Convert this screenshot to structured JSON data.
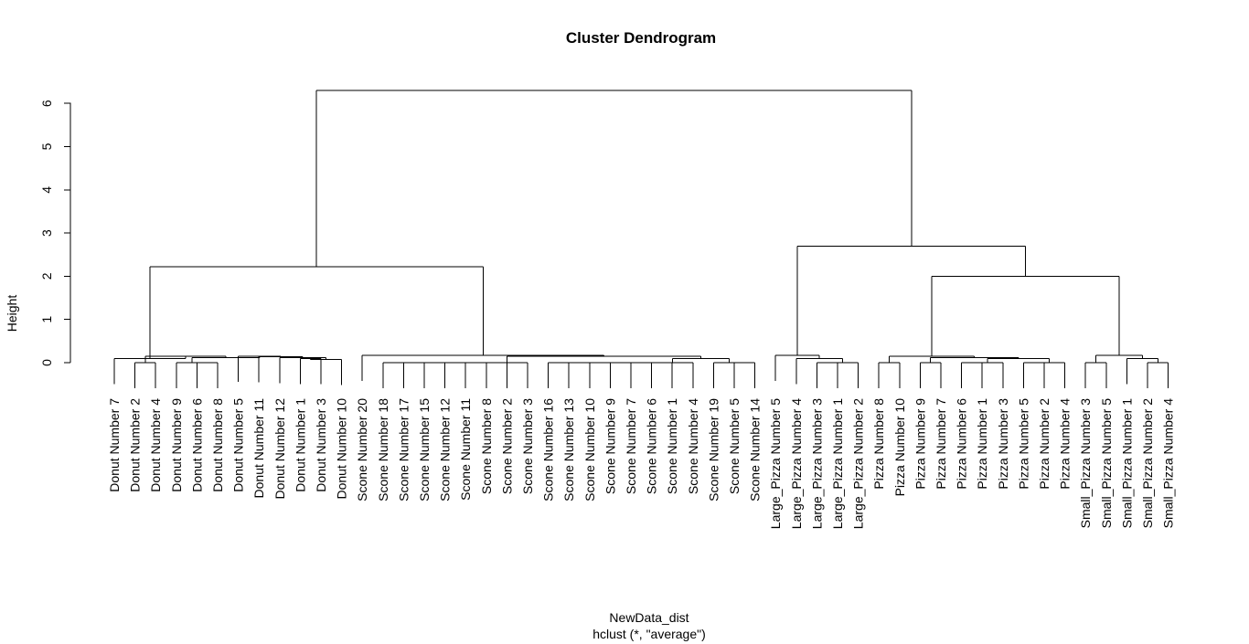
{
  "chart_data": {
    "type": "dendrogram",
    "title": "Cluster Dendrogram",
    "ylabel": "Height",
    "xlabel": "NewData_dist",
    "sublabel": "hclust (*, \"average\")",
    "ylim": [
      0,
      6.3
    ],
    "yticks": [
      0,
      1,
      2,
      3,
      4,
      5,
      6
    ],
    "labels": [
      "Donut Number 7",
      "Donut Number 2",
      "Donut Number 4",
      "Donut Number 9",
      "Donut Number 6",
      "Donut Number 8",
      "Donut Number 5",
      "Donut Number 11",
      "Donut Number 12",
      "Donut Number 1",
      "Donut Number 3",
      "Donut Number 10",
      "Scone Number 20",
      "Scone Number 18",
      "Scone Number 17",
      "Scone Number 15",
      "Scone Number 12",
      "Scone Number 11",
      "Scone Number 8",
      "Scone Number 2",
      "Scone Number 3",
      "Scone Number 16",
      "Scone Number 13",
      "Scone Number 10",
      "Scone Number 9",
      "Scone Number 7",
      "Scone Number 6",
      "Scone Number 1",
      "Scone Number 4",
      "Scone Number 19",
      "Scone Number 5",
      "Scone Number 14",
      "Large_Pizza Number 5",
      "Large_Pizza Number 4",
      "Large_Pizza Number 3",
      "Large_Pizza Number 1",
      "Large_Pizza Number 2",
      "Pizza Number 8",
      "Pizza Number 10",
      "Pizza Number 9",
      "Pizza Number 7",
      "Pizza Number 6",
      "Pizza Number 1",
      "Pizza Number 3",
      "Pizza Number 5",
      "Pizza Number 2",
      "Pizza Number 4",
      "Small_Pizza Number 3",
      "Small_Pizza Number 5",
      "Small_Pizza Number 1",
      "Small_Pizza Number 2",
      "Small_Pizza Number 4"
    ],
    "merges": [
      [
        -2,
        -3,
        0.0
      ],
      [
        -5,
        -6,
        0.0
      ],
      [
        -4,
        2,
        0.0
      ],
      [
        -10,
        -11,
        0.1
      ],
      [
        -12,
        4,
        0.07
      ],
      [
        -9,
        5,
        0.12
      ],
      [
        -8,
        6,
        0.14
      ],
      [
        -7,
        7,
        0.15
      ],
      [
        3,
        8,
        0.12
      ],
      [
        1,
        9,
        0.15
      ],
      [
        -1,
        10,
        0.1
      ],
      [
        -14,
        -15,
        0.0
      ],
      [
        -16,
        12,
        0.0
      ],
      [
        -17,
        13,
        0.0
      ],
      [
        -18,
        14,
        0.0
      ],
      [
        -19,
        15,
        0.0
      ],
      [
        -20,
        16,
        0.0
      ],
      [
        -21,
        17,
        0.0
      ],
      [
        -22,
        -23,
        0.0
      ],
      [
        19,
        -24,
        0.0
      ],
      [
        20,
        -25,
        0.0
      ],
      [
        21,
        -26,
        0.0
      ],
      [
        22,
        -27,
        0.0
      ],
      [
        23,
        -28,
        0.0
      ],
      [
        24,
        -29,
        0.0
      ],
      [
        -31,
        -32,
        0.0
      ],
      [
        -30,
        26,
        0.0
      ],
      [
        25,
        27,
        0.1
      ],
      [
        18,
        28,
        0.15
      ],
      [
        -13,
        29,
        0.17
      ],
      [
        11,
        30,
        2.22
      ],
      [
        -35,
        -36,
        0.0
      ],
      [
        32,
        -37,
        0.0
      ],
      [
        -34,
        33,
        0.1
      ],
      [
        -33,
        34,
        0.17
      ],
      [
        -38,
        -39,
        0.0
      ],
      [
        -40,
        -41,
        0.0
      ],
      [
        -42,
        -43,
        0.0
      ],
      [
        38,
        -44,
        0.0
      ],
      [
        -45,
        -46,
        0.0
      ],
      [
        40,
        -47,
        0.0
      ],
      [
        39,
        41,
        0.1
      ],
      [
        37,
        42,
        0.12
      ],
      [
        36,
        43,
        0.15
      ],
      [
        -48,
        -49,
        0.0
      ],
      [
        -51,
        -52,
        0.0
      ],
      [
        -50,
        46,
        0.1
      ],
      [
        45,
        47,
        0.17
      ],
      [
        44,
        48,
        2.0
      ],
      [
        35,
        49,
        2.7
      ],
      [
        31,
        50,
        6.3
      ]
    ]
  }
}
